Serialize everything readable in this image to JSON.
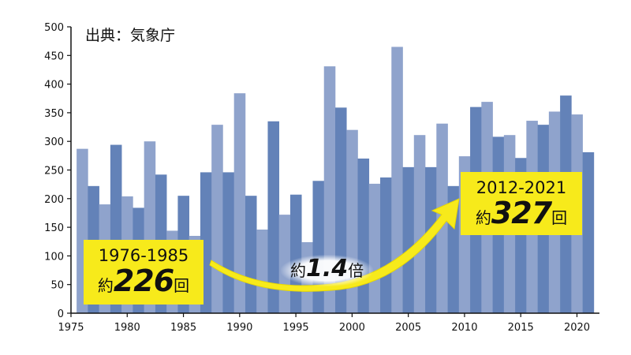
{
  "chart_data": {
    "type": "bar",
    "source": "出典：気象庁",
    "x": [
      1976,
      1977,
      1978,
      1979,
      1980,
      1981,
      1982,
      1983,
      1984,
      1985,
      1986,
      1987,
      1988,
      1989,
      1990,
      1991,
      1992,
      1993,
      1994,
      1995,
      1996,
      1997,
      1998,
      1999,
      2000,
      2001,
      2002,
      2003,
      2004,
      2005,
      2006,
      2007,
      2008,
      2009,
      2010,
      2011,
      2012,
      2013,
      2014,
      2015,
      2016,
      2017,
      2018,
      2019,
      2020,
      2021
    ],
    "values": [
      287,
      222,
      190,
      294,
      204,
      184,
      300,
      242,
      144,
      205,
      135,
      246,
      329,
      246,
      384,
      205,
      146,
      335,
      172,
      207,
      124,
      231,
      431,
      359,
      320,
      270,
      226,
      237,
      465,
      255,
      311,
      255,
      331,
      222,
      274,
      360,
      369,
      308,
      311,
      271,
      336,
      329,
      352,
      380,
      347,
      281
    ],
    "x_ticks": [
      "1975",
      "1980",
      "1985",
      "1990",
      "1995",
      "2000",
      "2005",
      "2010",
      "2015",
      "2020"
    ],
    "y_ticks": [
      "0",
      "50",
      "100",
      "150",
      "200",
      "250",
      "300",
      "350",
      "400",
      "450",
      "500"
    ],
    "xlim": [
      1975,
      2022
    ],
    "ylim": [
      0,
      500
    ],
    "colors": {
      "light": "#8fa3cc",
      "dark": "#6382b8",
      "callout": "#f7ea1b",
      "arrow": "#f7ea1b"
    },
    "annotations": {
      "left": {
        "period": "1976-1985",
        "prefix": "約",
        "value": "226",
        "suffix": "回"
      },
      "right": {
        "period": "2012-2021",
        "prefix": "約",
        "value": "327",
        "suffix": "回"
      },
      "ratio": {
        "prefix": "約",
        "value": "1.4",
        "suffix": "倍"
      }
    }
  }
}
